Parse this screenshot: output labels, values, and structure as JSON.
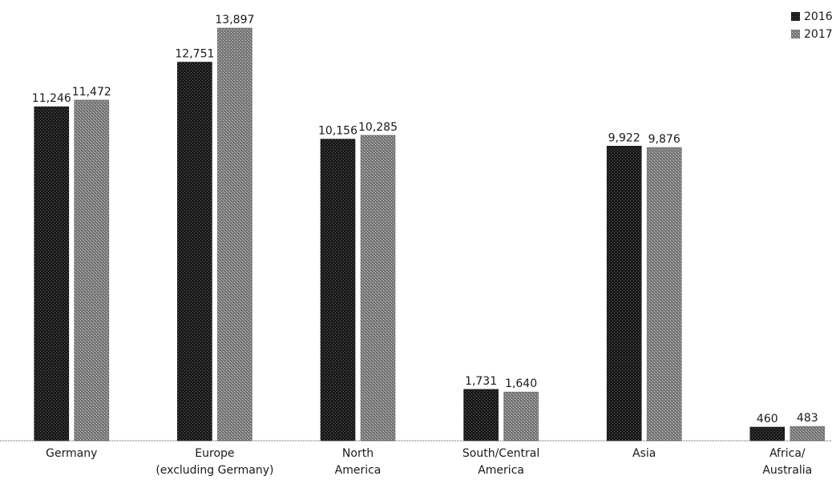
{
  "chart_data": {
    "type": "bar",
    "title": "",
    "xlabel": "",
    "ylabel": "",
    "ylim": [
      0,
      14500
    ],
    "grid": false,
    "legend_position": "top-right",
    "categories": [
      [
        "Germany"
      ],
      [
        "Europe",
        "(excluding Germany)"
      ],
      [
        "North",
        "America"
      ],
      [
        "South/Central",
        "America"
      ],
      [
        "Asia"
      ],
      [
        "Africa/",
        "Australia"
      ]
    ],
    "series": [
      {
        "name": "2016",
        "color": "#1c1c1c",
        "values": [
          11246,
          12751,
          10156,
          1731,
          9922,
          460
        ],
        "labels": [
          "11,246",
          "12,751",
          "10,156",
          "1,731",
          "9,922",
          "460"
        ]
      },
      {
        "name": "2017",
        "color": "#8c8c8c",
        "values": [
          11472,
          13897,
          10285,
          1640,
          9876,
          483
        ],
        "labels": [
          "11,472",
          "13,897",
          "10,285",
          "1,640",
          "9,876",
          "483"
        ]
      }
    ]
  }
}
